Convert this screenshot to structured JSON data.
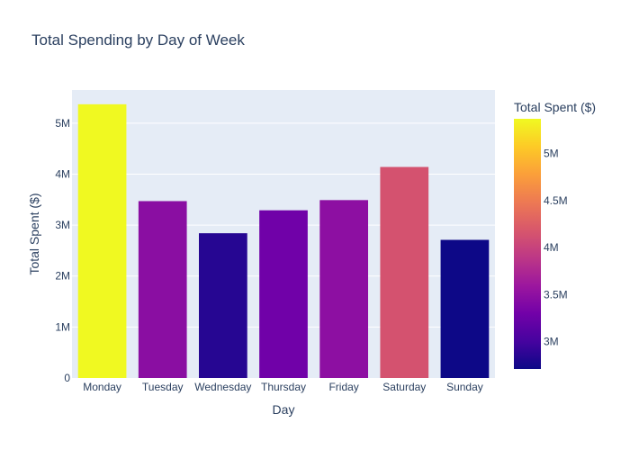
{
  "chart_data": {
    "type": "bar",
    "title": "Total Spending by Day of Week",
    "xlabel": "Day",
    "ylabel": "Total Spent ($)",
    "categories": [
      "Monday",
      "Tuesday",
      "Wednesday",
      "Thursday",
      "Friday",
      "Saturday",
      "Sunday"
    ],
    "values": [
      5370000,
      3470000,
      2840000,
      3290000,
      3490000,
      4140000,
      2710000
    ],
    "ylim": [
      0,
      5650000
    ],
    "yticks": [
      0,
      1000000,
      2000000,
      3000000,
      4000000,
      5000000
    ],
    "ytick_labels": [
      "0",
      "1M",
      "2M",
      "3M",
      "4M",
      "5M"
    ],
    "grid": true,
    "colorbar": {
      "title": "Total Spent ($)",
      "range": [
        2710000,
        5370000
      ],
      "ticks": [
        3000000,
        3500000,
        4000000,
        4500000,
        5000000
      ],
      "tick_labels": [
        "3M",
        "3.5M",
        "4M",
        "4.5M",
        "5M"
      ],
      "colorscale": [
        "#0d0887",
        "#46039f",
        "#7201a8",
        "#9c179e",
        "#bd3786",
        "#d8576b",
        "#ed7953",
        "#fb9f3a",
        "#fdca26",
        "#f0f921"
      ]
    },
    "colors": {
      "plot_bg": "#e5ecf6",
      "grid": "#ffffff",
      "text": "#2a3f5f"
    }
  }
}
